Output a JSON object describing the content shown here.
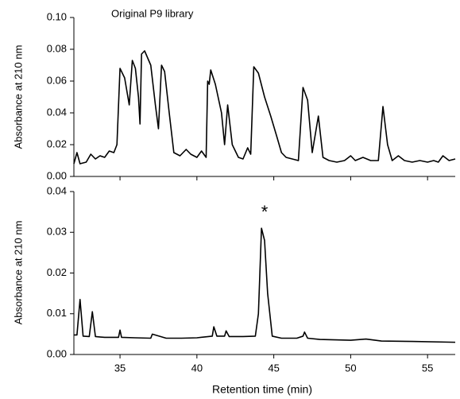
{
  "chart_data": [
    {
      "type": "line",
      "ylabel": "Absorbance at 210 nm",
      "annotation": "Original P9 library",
      "xlim": [
        32,
        56.8
      ],
      "ylim": [
        0,
        0.1
      ],
      "yticks": [
        {
          "value": 0,
          "label": "0.00"
        },
        0.02,
        0.04,
        0.06,
        0.08,
        {
          "value": 0.1,
          "label": "0.10"
        }
      ],
      "color": "#000000",
      "x": [
        32.0,
        32.2,
        32.4,
        32.8,
        33.1,
        33.4,
        33.7,
        34.0,
        34.3,
        34.6,
        34.8,
        35.0,
        35.3,
        35.6,
        35.8,
        36.0,
        36.2,
        36.3,
        36.4,
        36.6,
        37.0,
        37.3,
        37.5,
        37.7,
        37.9,
        38.2,
        38.5,
        38.9,
        39.3,
        39.6,
        40.0,
        40.3,
        40.6,
        40.7,
        40.8,
        40.9,
        41.2,
        41.6,
        41.8,
        42.0,
        42.3,
        42.7,
        43.0,
        43.3,
        43.5,
        43.7,
        44.0,
        44.4,
        44.8,
        45.2,
        45.5,
        45.8,
        46.2,
        46.6,
        46.9,
        47.2,
        47.5,
        47.9,
        48.2,
        48.6,
        49.1,
        49.6,
        50.0,
        50.3,
        50.8,
        51.3,
        51.8,
        52.1,
        52.4,
        52.7,
        53.1,
        53.5,
        54.0,
        54.5,
        55.0,
        55.4,
        55.7,
        56.0,
        56.4,
        56.8
      ],
      "values": [
        0.008,
        0.015,
        0.008,
        0.009,
        0.014,
        0.011,
        0.013,
        0.012,
        0.016,
        0.015,
        0.02,
        0.068,
        0.062,
        0.045,
        0.073,
        0.068,
        0.05,
        0.033,
        0.077,
        0.079,
        0.07,
        0.045,
        0.03,
        0.07,
        0.066,
        0.04,
        0.015,
        0.013,
        0.017,
        0.014,
        0.012,
        0.016,
        0.012,
        0.06,
        0.058,
        0.067,
        0.058,
        0.04,
        0.02,
        0.045,
        0.02,
        0.012,
        0.011,
        0.018,
        0.014,
        0.069,
        0.065,
        0.05,
        0.038,
        0.025,
        0.015,
        0.012,
        0.011,
        0.01,
        0.056,
        0.048,
        0.015,
        0.038,
        0.012,
        0.01,
        0.009,
        0.01,
        0.013,
        0.01,
        0.012,
        0.01,
        0.01,
        0.044,
        0.02,
        0.01,
        0.013,
        0.01,
        0.009,
        0.01,
        0.009,
        0.01,
        0.009,
        0.013,
        0.01,
        0.011
      ]
    },
    {
      "type": "line",
      "ylabel": "Absorbance at 210 nm",
      "annotation": "*",
      "xlabel": "Retention time (min)",
      "xlim": [
        32,
        56.8
      ],
      "ylim": [
        0,
        0.04
      ],
      "xticks": [
        35,
        40,
        45,
        50,
        55
      ],
      "yticks": [
        {
          "value": 0,
          "label": "0.00"
        },
        0.01,
        0.02,
        0.03,
        {
          "value": 0.04,
          "label": "0.04"
        }
      ],
      "color": "#000000",
      "x": [
        32.0,
        32.2,
        32.4,
        32.6,
        33.0,
        33.2,
        33.4,
        34.0,
        34.9,
        35.0,
        35.1,
        36.0,
        37.0,
        37.1,
        38.0,
        39.0,
        40.0,
        41.0,
        41.1,
        41.3,
        41.8,
        41.9,
        42.1,
        43.0,
        43.8,
        44.0,
        44.2,
        44.4,
        44.6,
        44.9,
        45.5,
        46.5,
        46.9,
        47.0,
        47.2,
        48.0,
        50.0,
        51.0,
        52.0,
        54.0,
        56.8
      ],
      "values": [
        0.0048,
        0.0048,
        0.0135,
        0.0045,
        0.0044,
        0.0105,
        0.0044,
        0.0042,
        0.0042,
        0.006,
        0.0042,
        0.0041,
        0.004,
        0.005,
        0.004,
        0.004,
        0.0041,
        0.0045,
        0.0068,
        0.0045,
        0.0045,
        0.0058,
        0.0044,
        0.0044,
        0.0045,
        0.01,
        0.031,
        0.028,
        0.015,
        0.0045,
        0.004,
        0.004,
        0.0045,
        0.0055,
        0.004,
        0.0037,
        0.0035,
        0.0038,
        0.0033,
        0.0032,
        0.003
      ]
    }
  ]
}
